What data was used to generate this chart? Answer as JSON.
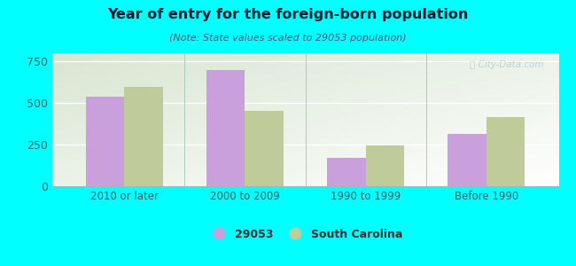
{
  "title": "Year of entry for the foreign-born population",
  "subtitle": "(Note: State values scaled to 29053 population)",
  "categories": [
    "2010 or later",
    "2000 to 2009",
    "1990 to 1999",
    "Before 1990"
  ],
  "values_29053": [
    537,
    700,
    170,
    315
  ],
  "values_sc": [
    600,
    455,
    248,
    415
  ],
  "bar_color_29053": "#c9a0dc",
  "bar_color_sc": "#bfcc99",
  "background_color": "#00ffff",
  "ylim": [
    0,
    800
  ],
  "yticks": [
    0,
    250,
    500,
    750
  ],
  "bar_width": 0.32,
  "legend_label_1": "29053",
  "legend_label_2": "South Carolina",
  "watermark": "ⓘ City-Data.com",
  "title_color": "#1a1a2e",
  "subtitle_color": "#555577",
  "tick_color": "#336666",
  "grid_color": "#ffffff"
}
